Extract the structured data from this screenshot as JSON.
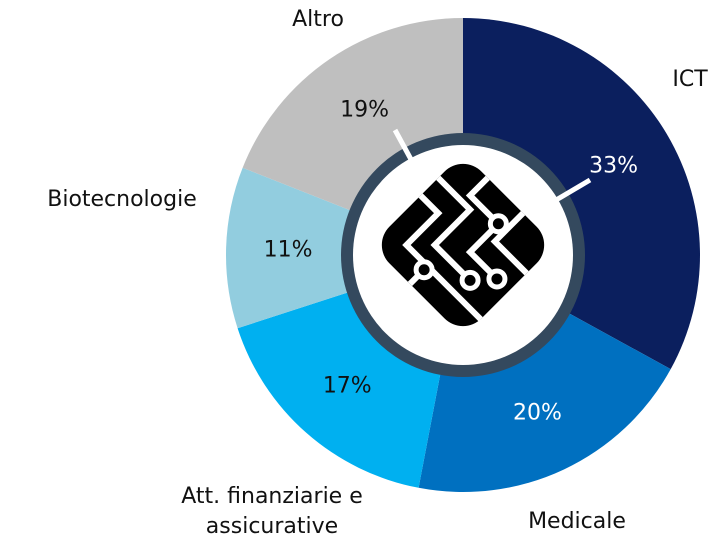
{
  "chart_data": {
    "type": "donut",
    "categories": [
      "ICT",
      "Medicale",
      "Att. finanziarie e assicurative",
      "Biotecnologie",
      "Altro"
    ],
    "values": [
      33,
      20,
      17,
      11,
      19
    ],
    "value_labels": [
      "33%",
      "20%",
      "17%",
      "11%",
      "19%"
    ],
    "colors": [
      "#0b1f5e",
      "#0070c0",
      "#00b0f0",
      "#92cddf",
      "#bfbfbf"
    ]
  }
}
